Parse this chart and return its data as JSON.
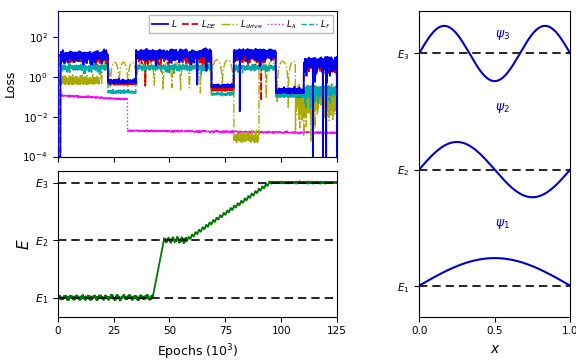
{
  "E1": 1.0,
  "E2": 2.5,
  "E3": 4.0,
  "epochs_max": 125000,
  "loss_ylim_low": 0.0001,
  "loss_ylim_high": 2000.0,
  "colors": {
    "L": "#0000ee",
    "L_DE": "#dd0000",
    "L_drive": "#aaaa00",
    "L_lambda": "#ff00ff",
    "L_f": "#00aaaa",
    "energy": "#007700",
    "psi": "#0000cc"
  },
  "ylabel_loss": "Loss",
  "ylabel_energy": "E",
  "xlabel_bottom": "Epochs ($10^3$)",
  "xlabel_right": "x",
  "x_ticks_bottom": [
    0,
    25000,
    50000,
    75000,
    100000,
    125000
  ],
  "x_tick_labels_bottom": [
    "0",
    "25",
    "50",
    "75",
    "100",
    "125"
  ],
  "x_ticks_right": [
    0.0,
    0.5,
    1.0
  ],
  "x_tick_labels_right": [
    "0.0",
    "0.5",
    "1.0"
  ]
}
